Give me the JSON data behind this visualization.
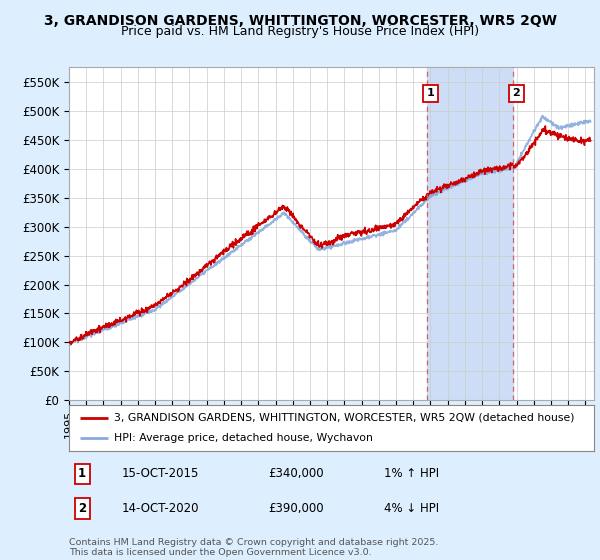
{
  "title": "3, GRANDISON GARDENS, WHITTINGTON, WORCESTER, WR5 2QW",
  "subtitle": "Price paid vs. HM Land Registry's House Price Index (HPI)",
  "ylabel_ticks": [
    "£0",
    "£50K",
    "£100K",
    "£150K",
    "£200K",
    "£250K",
    "£300K",
    "£350K",
    "£400K",
    "£450K",
    "£500K",
    "£550K"
  ],
  "ytick_values": [
    0,
    50000,
    100000,
    150000,
    200000,
    250000,
    300000,
    350000,
    400000,
    450000,
    500000,
    550000
  ],
  "ylim": [
    0,
    575000
  ],
  "xlim_start": 1995.0,
  "xlim_end": 2025.5,
  "xtick_years": [
    1995,
    1996,
    1997,
    1998,
    1999,
    2000,
    2001,
    2002,
    2003,
    2004,
    2005,
    2006,
    2007,
    2008,
    2009,
    2010,
    2011,
    2012,
    2013,
    2014,
    2015,
    2016,
    2017,
    2018,
    2019,
    2020,
    2021,
    2022,
    2023,
    2024,
    2025
  ],
  "sale1_x": 2015.79,
  "sale1_y": 340000,
  "sale1_label": "1",
  "sale1_date": "15-OCT-2015",
  "sale1_price": "£340,000",
  "sale1_hpi": "1% ↑ HPI",
  "sale2_x": 2020.79,
  "sale2_y": 390000,
  "sale2_label": "2",
  "sale2_date": "14-OCT-2020",
  "sale2_price": "£390,000",
  "sale2_hpi": "4% ↓ HPI",
  "line_color_red": "#cc0000",
  "line_color_blue": "#88aadd",
  "bg_color": "#ddeeff",
  "plot_bg": "#ffffff",
  "shade_color": "#ccddf5",
  "grid_color": "#cccccc",
  "dashed_line_color": "#cc6666",
  "legend1_label": "3, GRANDISON GARDENS, WHITTINGTON, WORCESTER, WR5 2QW (detached house)",
  "legend2_label": "HPI: Average price, detached house, Wychavon",
  "footer": "Contains HM Land Registry data © Crown copyright and database right 2025.\nThis data is licensed under the Open Government Licence v3.0."
}
